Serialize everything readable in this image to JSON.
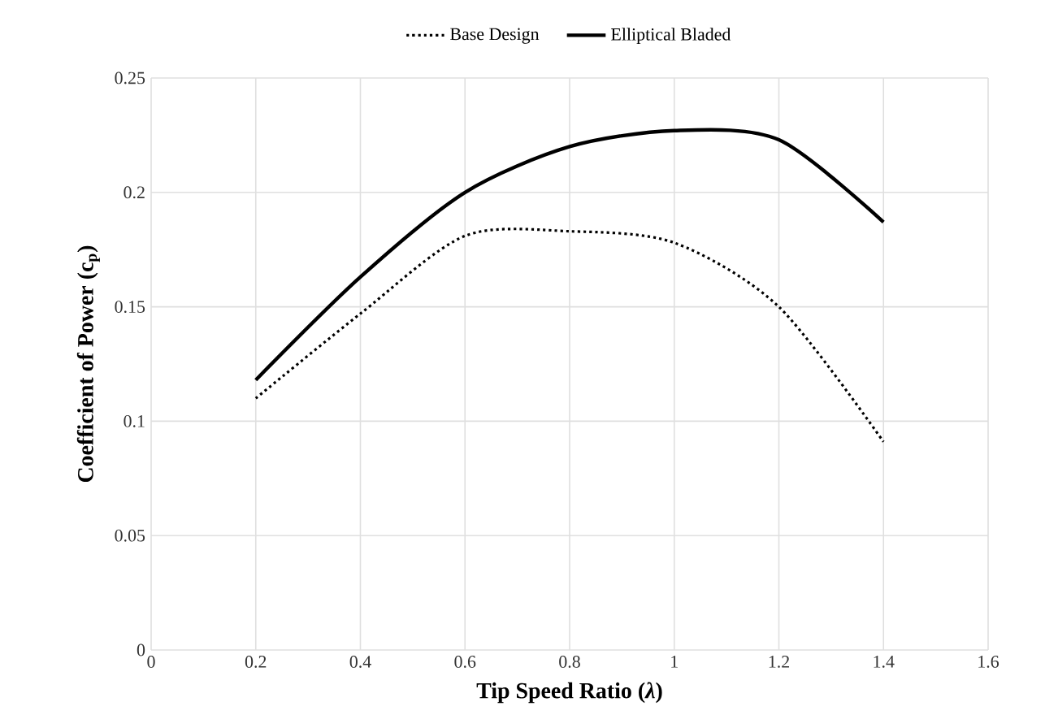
{
  "chart_data": {
    "type": "line",
    "xlabel": "Tip Speed Ratio (*λ*)",
    "ylabel": "Coefficient of Power (c$_{p}$)",
    "x": [
      0.2,
      0.4,
      0.6,
      0.8,
      1.0,
      1.2,
      1.4
    ],
    "series": [
      {
        "name": "Base Design",
        "color": "#000000",
        "line_style": "dotted",
        "values": [
          0.11,
          0.147,
          0.181,
          0.183,
          0.178,
          0.15,
          0.091
        ]
      },
      {
        "name": "Elliptical Bladed",
        "color": "#000000",
        "line_style": "solid",
        "values": [
          0.118,
          0.163,
          0.2,
          0.22,
          0.227,
          0.223,
          0.187
        ]
      }
    ],
    "xlim": [
      0,
      1.6
    ],
    "xticks": [
      0,
      0.2,
      0.4,
      0.6,
      0.8,
      1,
      1.2,
      1.4,
      1.6
    ],
    "ylim": [
      0,
      0.25
    ],
    "yticks": [
      0,
      0.05,
      0.1,
      0.15,
      0.2,
      0.25
    ],
    "grid": true,
    "legend": "top",
    "marker": "none"
  }
}
